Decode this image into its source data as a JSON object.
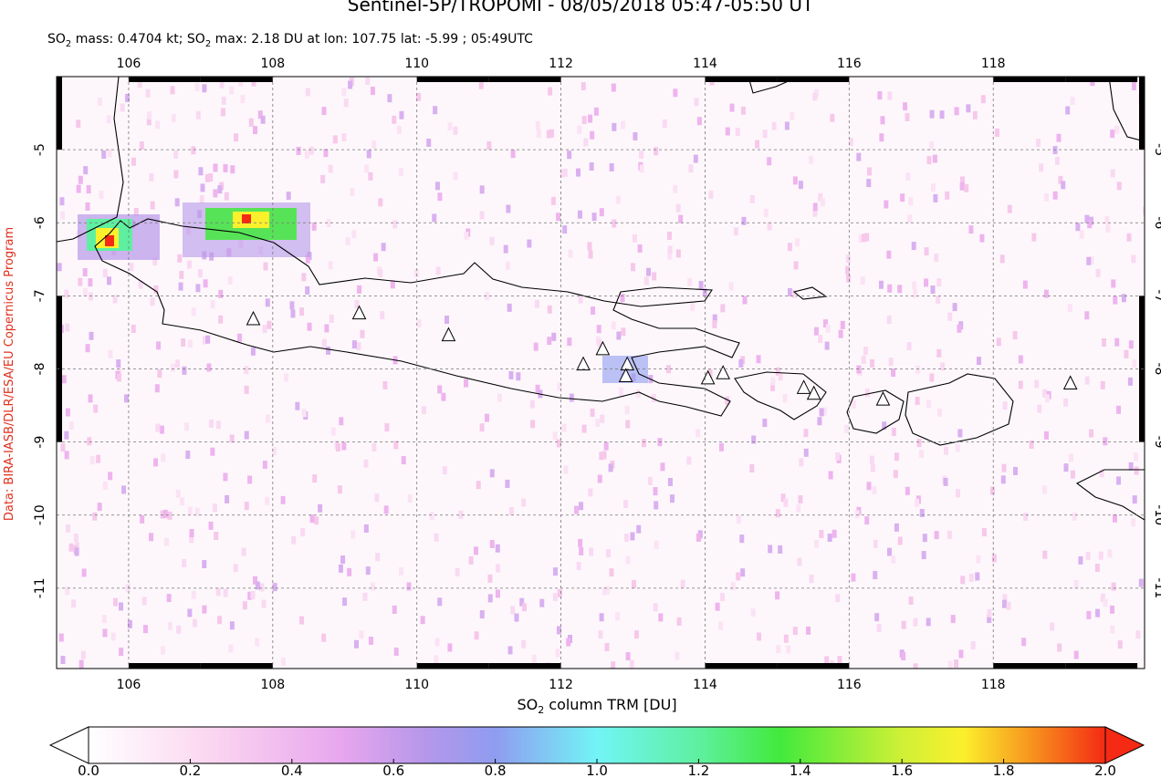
{
  "header": {
    "title": "Sentinel-5P/TROPOMI - 08/05/2018 05:47-05:50 UT",
    "subtitle": [
      "SO",
      "2",
      " mass: 0.4704 kt; SO",
      "2",
      " max: 2.18 DU at lon: 107.75 lat: -5.99 ; 05:49UTC"
    ]
  },
  "credit": "Data: BIRA-IASB/DLR/ESA/EU Copernicus Program",
  "map": {
    "xlim": [
      105,
      120.1
    ],
    "ylim": [
      -12.1,
      -4
    ],
    "xticks": [
      106,
      108,
      110,
      112,
      114,
      116,
      118
    ],
    "yticks": [
      -5,
      -6,
      -7,
      -8,
      -9,
      -10,
      -11
    ],
    "grid": true,
    "volcanoes": [
      {
        "lon": 107.73,
        "lat": -7.32
      },
      {
        "lon": 109.2,
        "lat": -7.24
      },
      {
        "lon": 110.44,
        "lat": -7.54
      },
      {
        "lon": 112.31,
        "lat": -7.94
      },
      {
        "lon": 112.58,
        "lat": -7.73
      },
      {
        "lon": 112.92,
        "lat": -7.94
      },
      {
        "lon": 112.9,
        "lat": -8.1
      },
      {
        "lon": 114.04,
        "lat": -8.13
      },
      {
        "lon": 114.25,
        "lat": -8.06
      },
      {
        "lon": 115.37,
        "lat": -8.26
      },
      {
        "lon": 115.51,
        "lat": -8.34
      },
      {
        "lon": 116.47,
        "lat": -8.42
      },
      {
        "lon": 119.07,
        "lat": -8.2
      }
    ]
  },
  "colorbar": {
    "label": [
      "SO",
      "2",
      " column TRM [DU]"
    ],
    "lim": [
      0,
      2
    ],
    "ticks": [
      {
        "value": 0,
        "label": "0.0"
      },
      {
        "value": 0.2,
        "label": "0.2"
      },
      {
        "value": 0.4,
        "label": "0.4"
      },
      {
        "value": 0.6,
        "label": "0.6"
      },
      {
        "value": 0.8,
        "label": "0.8"
      },
      {
        "value": 1,
        "label": "1.0"
      },
      {
        "value": 1.2,
        "label": "1.2"
      },
      {
        "value": 1.4,
        "label": "1.4"
      },
      {
        "value": 1.6,
        "label": "1.6"
      },
      {
        "value": 1.8,
        "label": "1.8"
      },
      {
        "value": 2,
        "label": "2.0"
      }
    ]
  }
}
